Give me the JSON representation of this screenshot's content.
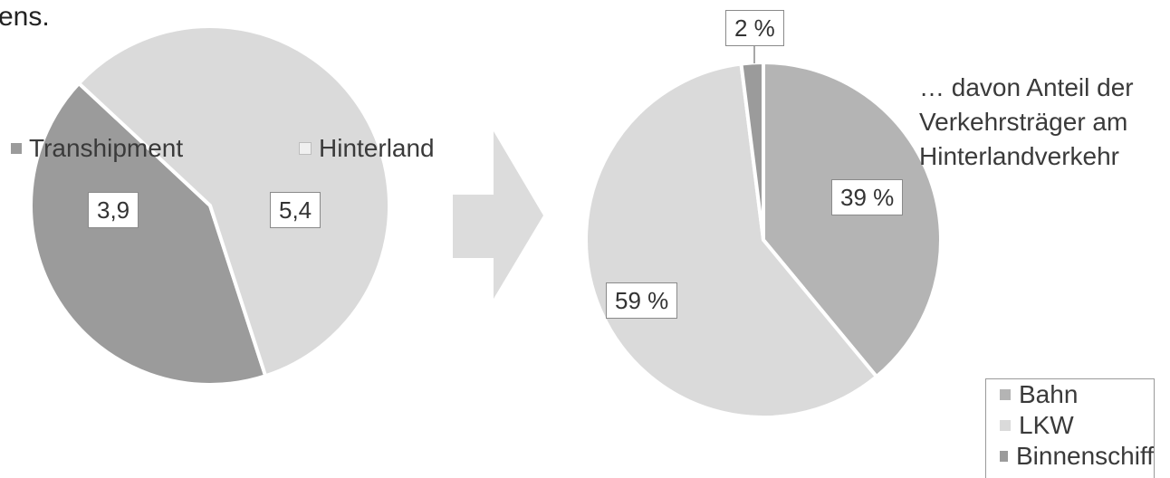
{
  "fragment_text": "ens.",
  "side_note": "… davon Anteil der Verkehrsträger am Hinterlandverkehr",
  "colors": {
    "dark": "#9b9b9b",
    "light": "#dadada",
    "mid": "#b4b4b4",
    "arrow": "#dcdcdc"
  },
  "chart_data": [
    {
      "type": "pie",
      "title": "",
      "categories": [
        "Transhipment",
        "Hinterland"
      ],
      "values": [
        3.9,
        5.4
      ],
      "value_labels": [
        "3,9",
        "5,4"
      ],
      "legend": [
        "Transhipment",
        "Hinterland"
      ],
      "legend_position": "top"
    },
    {
      "type": "pie",
      "title": "",
      "categories": [
        "Bahn",
        "LKW",
        "Binnenschiff"
      ],
      "values": [
        39,
        59,
        2
      ],
      "value_labels": [
        "39 %",
        "59 %",
        "2 %"
      ],
      "legend": [
        "Bahn",
        "LKW",
        "Binnenschiff"
      ],
      "legend_position": "bottom-right"
    }
  ]
}
